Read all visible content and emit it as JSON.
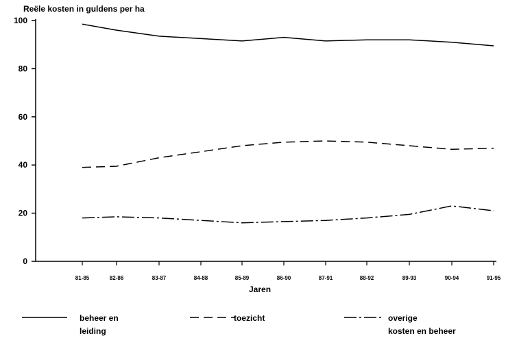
{
  "chart_data": {
    "type": "line",
    "title": "",
    "ylabel": "Reële kosten in guldens per ha",
    "xlabel": "Jaren",
    "ylim": [
      0,
      100
    ],
    "yticks": [
      0,
      20,
      40,
      60,
      80,
      100
    ],
    "categories": [
      "81-85",
      "82-86",
      "83-87",
      "84-88",
      "85-89",
      "86-90",
      "87-91",
      "88-92",
      "89-93",
      "90-94",
      "91-95"
    ],
    "series": [
      {
        "name": "beheer en leiding",
        "dash": "solid",
        "values": [
          98.5,
          96,
          93.5,
          92.5,
          91.5,
          93,
          91.5,
          92,
          92,
          91,
          89.5
        ]
      },
      {
        "name": "toezicht",
        "dash": "dashed",
        "values": [
          39,
          39.5,
          43,
          45.5,
          48,
          49.5,
          50,
          49.5,
          48,
          46.5,
          47
        ]
      },
      {
        "name": "overige kosten en beheer",
        "dash": "dashdot",
        "values": [
          18,
          18.5,
          18,
          17,
          16,
          16.5,
          17,
          18,
          19.5,
          23,
          21
        ]
      }
    ],
    "grid": false,
    "legend": "bottom"
  },
  "legend": [
    {
      "label": "beheer en\nleiding",
      "dash": "solid"
    },
    {
      "label": "toezicht",
      "dash": "dashed"
    },
    {
      "label": "overige\nkosten en beheer",
      "dash": "dashdot"
    }
  ]
}
